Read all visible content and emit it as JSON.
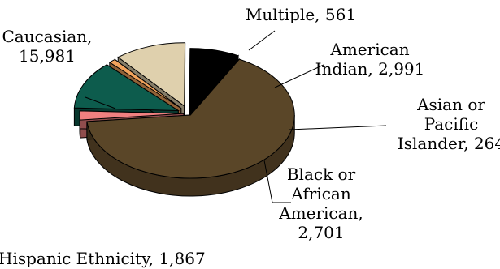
{
  "chart_data": {
    "type": "pie",
    "style": "3d-exploded",
    "slices": [
      {
        "name": "Caucasian",
        "value": 15981,
        "label": [
          "Caucasian,",
          "15,981"
        ],
        "color": "#5a4628"
      },
      {
        "name": "Multiple",
        "value": 561,
        "label": [
          "Multiple, 561"
        ],
        "color": "#f08080"
      },
      {
        "name": "American Indian",
        "value": 2991,
        "label": [
          "American",
          "Indian, 2,991"
        ],
        "color": "#0d5c4d"
      },
      {
        "name": "Asian or Pacific Islander",
        "value": 264,
        "label": [
          "Asian or",
          "Pacific",
          "Islander, 264"
        ],
        "color": "#f2a35c"
      },
      {
        "name": "Black or African American",
        "value": 2701,
        "label": [
          "Black or",
          "African",
          "American,",
          "2,701"
        ],
        "color": "#dfd0ad"
      },
      {
        "name": "Hispanic Ethnicity",
        "value": 1867,
        "label": [
          "Hispanic Ethnicity, 1,867"
        ],
        "color": "#000000"
      }
    ]
  }
}
